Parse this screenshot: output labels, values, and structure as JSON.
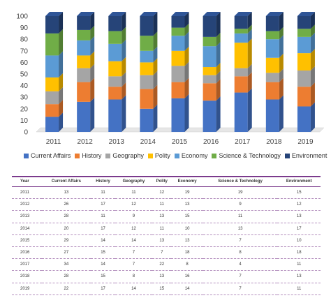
{
  "chart_data": {
    "type": "bar",
    "stacked": true,
    "categories": [
      "2011",
      "2012",
      "2013",
      "2014",
      "2015",
      "2016",
      "2017",
      "2018",
      "2019"
    ],
    "ylim": [
      0,
      100
    ],
    "yticks": [
      0,
      10,
      20,
      30,
      40,
      50,
      60,
      70,
      80,
      90,
      100
    ],
    "legend_position": "bottom",
    "series": [
      {
        "name": "Current Affairs",
        "color": "#4472c4",
        "values": [
          13,
          26,
          28,
          20,
          29,
          27,
          34,
          28,
          22
        ]
      },
      {
        "name": "History",
        "color": "#ed7d31",
        "values": [
          11,
          17,
          11,
          17,
          14,
          15,
          14,
          15,
          17
        ]
      },
      {
        "name": "Geography",
        "color": "#a5a5a5",
        "values": [
          11,
          12,
          9,
          12,
          14,
          7,
          7,
          8,
          14
        ]
      },
      {
        "name": "Polity",
        "color": "#ffc000",
        "values": [
          12,
          11,
          13,
          11,
          13,
          7,
          22,
          13,
          15
        ]
      },
      {
        "name": "Economy",
        "color": "#5b9bd5",
        "values": [
          19,
          13,
          15,
          10,
          13,
          18,
          8,
          16,
          14
        ]
      },
      {
        "name": "Science & Technology",
        "color": "#70ad47",
        "values": [
          19,
          9,
          11,
          13,
          7,
          8,
          4,
          7,
          7
        ]
      },
      {
        "name": "Environment",
        "color": "#264478",
        "values": [
          15,
          12,
          13,
          17,
          10,
          18,
          11,
          13,
          11
        ]
      }
    ]
  },
  "table": {
    "headers": [
      "Year",
      "Current Affairs",
      "History",
      "Geography",
      "Polity",
      "Economy",
      "Science & Technology",
      "Environment"
    ],
    "rows": [
      [
        "2011",
        "13",
        "11",
        "11",
        "12",
        "19",
        "19",
        "15"
      ],
      [
        "2012",
        "26",
        "17",
        "12",
        "11",
        "13",
        "9",
        "12"
      ],
      [
        "2013",
        "28",
        "11",
        "9",
        "13",
        "15",
        "11",
        "13"
      ],
      [
        "2014",
        "20",
        "17",
        "12",
        "11",
        "10",
        "13",
        "17"
      ],
      [
        "2015",
        "29",
        "14",
        "14",
        "13",
        "13",
        "7",
        "10"
      ],
      [
        "2016",
        "27",
        "15",
        "7",
        "7",
        "18",
        "8",
        "18"
      ],
      [
        "2017",
        "34",
        "14",
        "7",
        "22",
        "8",
        "4",
        "11"
      ],
      [
        "2018",
        "28",
        "15",
        "8",
        "13",
        "16",
        "7",
        "13"
      ],
      [
        "2019",
        "22",
        "17",
        "14",
        "15",
        "14",
        "7",
        "11"
      ]
    ]
  }
}
